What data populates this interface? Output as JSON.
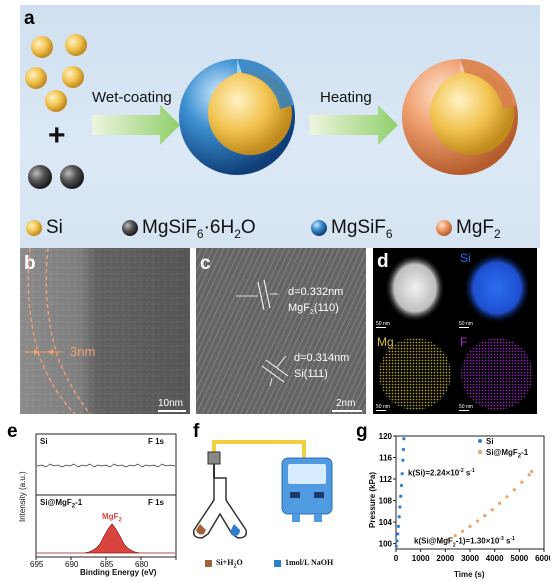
{
  "panel_a": {
    "label": "a",
    "arrow1": "Wet-coating",
    "arrow2": "Heating",
    "legend": [
      {
        "name": "Si",
        "color": "#f0c050"
      },
      {
        "name": "MgSiF6·6H2O",
        "color": "#555555"
      },
      {
        "name": "MgSiF6",
        "color": "#2f7fc0"
      },
      {
        "name": "MgF2",
        "color": "#e58a5a"
      }
    ]
  },
  "panel_b": {
    "label": "b",
    "thickness": "3nm",
    "scale": "10nm"
  },
  "panel_c": {
    "label": "c",
    "d1": "d=0.332nm",
    "plane1_pre": "MgF",
    "plane1_sub": "2",
    "plane1_post": "(110)",
    "d2": "d=0.314nm",
    "plane2": "Si(111)",
    "scale": "2nm"
  },
  "panel_d": {
    "label": "d",
    "maps": [
      "Si",
      "Mg",
      "F"
    ],
    "colors": {
      "Si": "#2a6ff0",
      "Mg": "#d8c23a",
      "F": "#b02ad8"
    },
    "scale": "50 nm"
  },
  "panel_e": {
    "label": "e",
    "ylabel": "Intensity (a.u.)",
    "xlabel": "Binding Energy (eV)",
    "top_left": "Si",
    "top_right": "F 1s",
    "bot_left": "Si@MgF2-1",
    "bot_right": "F 1s",
    "peak_label": "MgF2",
    "xticks": [
      "695",
      "690",
      "685",
      "680"
    ]
  },
  "panel_f": {
    "label": "f",
    "legend": [
      "Si+H2O",
      "1mol/L NaOH"
    ],
    "colors": {
      "brown": "#a0623a",
      "blue": "#2a7fd0"
    }
  },
  "panel_g": {
    "label": "g"
  },
  "chart_data": {
    "type": "scatter",
    "xlabel": "Time (s)",
    "ylabel": "Pressure (kPa)",
    "xlim": [
      0,
      6000
    ],
    "ylim": [
      99,
      120
    ],
    "xticks": [
      0,
      1000,
      2000,
      3000,
      4000,
      5000,
      6000
    ],
    "yticks": [
      100,
      104,
      108,
      112,
      116,
      120
    ],
    "legend_position": "top-right",
    "series": [
      {
        "name": "Si",
        "color": "#2a7fd0",
        "x": [
          10,
          40,
          70,
          100,
          130,
          160,
          190,
          220,
          250,
          280,
          300,
          320
        ],
        "y": [
          99.5,
          100.5,
          101.8,
          103.2,
          105,
          106.8,
          108.8,
          110.8,
          113,
          115.5,
          117.5,
          119.5
        ]
      },
      {
        "name": "Si@MgF2-1",
        "color": "#f0a060",
        "x": [
          1800,
          2100,
          2400,
          2700,
          3000,
          3300,
          3600,
          3900,
          4200,
          4500,
          4800,
          5100,
          5400,
          5500
        ],
        "y": [
          100.3,
          100.8,
          101.5,
          102.3,
          103.2,
          104.2,
          105.2,
          106.3,
          107.5,
          108.7,
          110,
          111.4,
          112.8,
          113.4
        ]
      }
    ],
    "annotations": [
      {
        "text": "k(Si)=2.24×10-2 s-1",
        "pre": "k(Si)=2.24×10",
        "sup1": "-2",
        "mid": " s",
        "sup2": "-1"
      },
      {
        "text": "k(Si@MgF2-1)=1.30×10-3 s-1",
        "pre": "k(Si@MgF",
        "sub": "2",
        "pre2": "-1)=1.30×10",
        "sup1": "-3",
        "mid": " s",
        "sup2": "-1"
      }
    ]
  }
}
